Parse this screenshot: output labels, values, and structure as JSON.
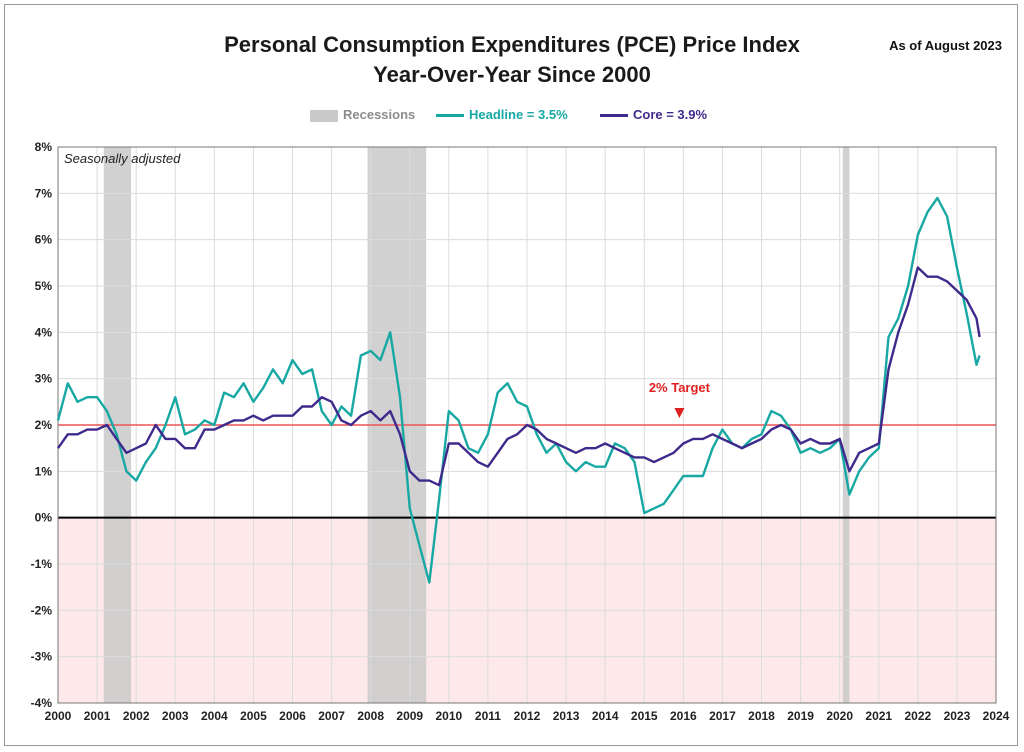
{
  "header": {
    "title_line1": "Personal Consumption Expenditures (PCE) Price Index",
    "title_line2": "Year-Over-Year Since 2000",
    "as_of": "As of August 2023"
  },
  "legend": {
    "recessions": "Recessions",
    "headline": "Headline = 3.5%",
    "core": "Core = 3.9%"
  },
  "annotations": {
    "note": "Seasonally adjusted",
    "target_label": "2% Target"
  },
  "colors": {
    "headline": "#18a8a3",
    "core": "#3f2a8c",
    "recession": "#c9c9c9",
    "target": "#ee5555",
    "negative_fill": "#fde8ea",
    "target_label": "#e02020"
  },
  "chart_data": {
    "type": "line",
    "title": "Personal Consumption Expenditures (PCE) Price Index Year-Over-Year Since 2000",
    "ylim": [
      -4,
      8
    ],
    "xlim": [
      2000,
      2024
    ],
    "y_ticks": [
      "8%",
      "7%",
      "6%",
      "5%",
      "4%",
      "3%",
      "2%",
      "1%",
      "0%",
      "-1%",
      "-2%",
      "-3%",
      "-4%"
    ],
    "y_tick_values": [
      8,
      7,
      6,
      5,
      4,
      3,
      2,
      1,
      0,
      -1,
      -2,
      -3,
      -4
    ],
    "x_ticks": [
      "2000",
      "2001",
      "2002",
      "2003",
      "2004",
      "2005",
      "2006",
      "2007",
      "2008",
      "2009",
      "2010",
      "2011",
      "2012",
      "2013",
      "2014",
      "2015",
      "2016",
      "2017",
      "2018",
      "2019",
      "2020",
      "2021",
      "2022",
      "2023",
      "2024"
    ],
    "grid": true,
    "legend_position": "top-center",
    "target_value": 2,
    "recessions": [
      [
        2001.17,
        2001.87
      ],
      [
        2007.92,
        2009.42
      ],
      [
        2020.08,
        2020.25
      ]
    ],
    "series": [
      {
        "name": "Headline = 3.5%",
        "x": [
          2000.0,
          2000.25,
          2000.5,
          2000.75,
          2001.0,
          2001.25,
          2001.5,
          2001.75,
          2002.0,
          2002.25,
          2002.5,
          2002.75,
          2003.0,
          2003.25,
          2003.5,
          2003.75,
          2004.0,
          2004.25,
          2004.5,
          2004.75,
          2005.0,
          2005.25,
          2005.5,
          2005.75,
          2006.0,
          2006.25,
          2006.5,
          2006.75,
          2007.0,
          2007.25,
          2007.5,
          2007.75,
          2008.0,
          2008.25,
          2008.5,
          2008.75,
          2009.0,
          2009.25,
          2009.5,
          2009.75,
          2010.0,
          2010.25,
          2010.5,
          2010.75,
          2011.0,
          2011.25,
          2011.5,
          2011.75,
          2012.0,
          2012.25,
          2012.5,
          2012.75,
          2013.0,
          2013.25,
          2013.5,
          2013.75,
          2014.0,
          2014.25,
          2014.5,
          2014.75,
          2015.0,
          2015.25,
          2015.5,
          2015.75,
          2016.0,
          2016.25,
          2016.5,
          2016.75,
          2017.0,
          2017.25,
          2017.5,
          2017.75,
          2018.0,
          2018.25,
          2018.5,
          2018.75,
          2019.0,
          2019.25,
          2019.5,
          2019.75,
          2020.0,
          2020.25,
          2020.5,
          2020.75,
          2021.0,
          2021.25,
          2021.5,
          2021.75,
          2022.0,
          2022.25,
          2022.5,
          2022.75,
          2023.0,
          2023.25,
          2023.5,
          2023.58
        ],
        "values": [
          2.1,
          2.9,
          2.5,
          2.6,
          2.6,
          2.3,
          1.8,
          1.0,
          0.8,
          1.2,
          1.5,
          2.0,
          2.6,
          1.8,
          1.9,
          2.1,
          2.0,
          2.7,
          2.6,
          2.9,
          2.5,
          2.8,
          3.2,
          2.9,
          3.4,
          3.1,
          3.2,
          2.3,
          2.0,
          2.4,
          2.2,
          3.5,
          3.6,
          3.4,
          4.0,
          2.6,
          0.2,
          -0.6,
          -1.4,
          0.4,
          2.3,
          2.1,
          1.5,
          1.4,
          1.8,
          2.7,
          2.9,
          2.5,
          2.4,
          1.8,
          1.4,
          1.6,
          1.2,
          1.0,
          1.2,
          1.1,
          1.1,
          1.6,
          1.5,
          1.2,
          0.1,
          0.2,
          0.3,
          0.6,
          0.9,
          0.9,
          0.9,
          1.5,
          1.9,
          1.6,
          1.5,
          1.7,
          1.8,
          2.3,
          2.2,
          1.9,
          1.4,
          1.5,
          1.4,
          1.5,
          1.7,
          0.5,
          1.0,
          1.3,
          1.5,
          3.9,
          4.3,
          5.0,
          6.1,
          6.6,
          6.9,
          6.5,
          5.4,
          4.4,
          3.3,
          3.5
        ]
      },
      {
        "name": "Core = 3.9%",
        "x": [
          2000.0,
          2000.25,
          2000.5,
          2000.75,
          2001.0,
          2001.25,
          2001.5,
          2001.75,
          2002.0,
          2002.25,
          2002.5,
          2002.75,
          2003.0,
          2003.25,
          2003.5,
          2003.75,
          2004.0,
          2004.25,
          2004.5,
          2004.75,
          2005.0,
          2005.25,
          2005.5,
          2005.75,
          2006.0,
          2006.25,
          2006.5,
          2006.75,
          2007.0,
          2007.25,
          2007.5,
          2007.75,
          2008.0,
          2008.25,
          2008.5,
          2008.75,
          2009.0,
          2009.25,
          2009.5,
          2009.75,
          2010.0,
          2010.25,
          2010.5,
          2010.75,
          2011.0,
          2011.25,
          2011.5,
          2011.75,
          2012.0,
          2012.25,
          2012.5,
          2012.75,
          2013.0,
          2013.25,
          2013.5,
          2013.75,
          2014.0,
          2014.25,
          2014.5,
          2014.75,
          2015.0,
          2015.25,
          2015.5,
          2015.75,
          2016.0,
          2016.25,
          2016.5,
          2016.75,
          2017.0,
          2017.25,
          2017.5,
          2017.75,
          2018.0,
          2018.25,
          2018.5,
          2018.75,
          2019.0,
          2019.25,
          2019.5,
          2019.75,
          2020.0,
          2020.25,
          2020.5,
          2020.75,
          2021.0,
          2021.25,
          2021.5,
          2021.75,
          2022.0,
          2022.25,
          2022.5,
          2022.75,
          2023.0,
          2023.25,
          2023.5,
          2023.58
        ],
        "values": [
          1.5,
          1.8,
          1.8,
          1.9,
          1.9,
          2.0,
          1.7,
          1.4,
          1.5,
          1.6,
          2.0,
          1.7,
          1.7,
          1.5,
          1.5,
          1.9,
          1.9,
          2.0,
          2.1,
          2.1,
          2.2,
          2.1,
          2.2,
          2.2,
          2.2,
          2.4,
          2.4,
          2.6,
          2.5,
          2.1,
          2.0,
          2.2,
          2.3,
          2.1,
          2.3,
          1.8,
          1.0,
          0.8,
          0.8,
          0.7,
          1.6,
          1.6,
          1.4,
          1.2,
          1.1,
          1.4,
          1.7,
          1.8,
          2.0,
          1.9,
          1.7,
          1.6,
          1.5,
          1.4,
          1.5,
          1.5,
          1.6,
          1.5,
          1.4,
          1.3,
          1.3,
          1.2,
          1.3,
          1.4,
          1.6,
          1.7,
          1.7,
          1.8,
          1.7,
          1.6,
          1.5,
          1.6,
          1.7,
          1.9,
          2.0,
          1.9,
          1.6,
          1.7,
          1.6,
          1.6,
          1.7,
          1.0,
          1.4,
          1.5,
          1.6,
          3.2,
          4.0,
          4.6,
          5.4,
          5.2,
          5.2,
          5.1,
          4.9,
          4.7,
          4.3,
          3.9
        ]
      }
    ]
  }
}
